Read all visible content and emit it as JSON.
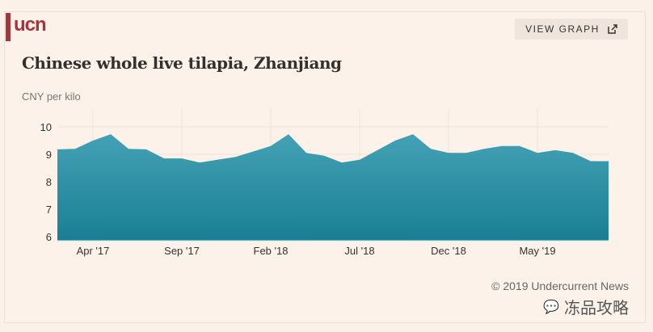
{
  "header": {
    "logo": "ucn",
    "view_graph_label": "VIEW GRAPH"
  },
  "footer": {
    "copyright": "© 2019 Undercurrent News",
    "watermark": "冻品攻略"
  },
  "colors": {
    "accent": "#a8333a",
    "area_top": "#44a1b5",
    "area_bottom": "#1a7f94"
  },
  "chart_data": {
    "type": "area",
    "title": "Chinese whole live tilapia, Zhanjiang",
    "ylabel": "CNY per kilo",
    "xlabel": "",
    "ylim": [
      6,
      10
    ],
    "yticks": [
      6,
      7,
      8,
      9,
      10
    ],
    "x_start": "Feb '17",
    "x_end": "Sep '19",
    "xticks": [
      {
        "index": 2,
        "label": "Apr '17"
      },
      {
        "index": 7,
        "label": "Sep '17"
      },
      {
        "index": 12,
        "label": "Feb '18"
      },
      {
        "index": 17,
        "label": "Jul '18"
      },
      {
        "index": 22,
        "label": "Dec '18"
      },
      {
        "index": 27,
        "label": "May '19"
      }
    ],
    "values": [
      9.18,
      9.2,
      9.5,
      9.73,
      9.2,
      9.18,
      8.85,
      8.85,
      8.7,
      8.8,
      8.9,
      9.1,
      9.3,
      9.73,
      9.05,
      8.95,
      8.7,
      8.8,
      9.15,
      9.5,
      9.73,
      9.2,
      9.05,
      9.05,
      9.2,
      9.3,
      9.3,
      9.05,
      9.15,
      9.05,
      8.75,
      8.75
    ],
    "grid": true
  }
}
